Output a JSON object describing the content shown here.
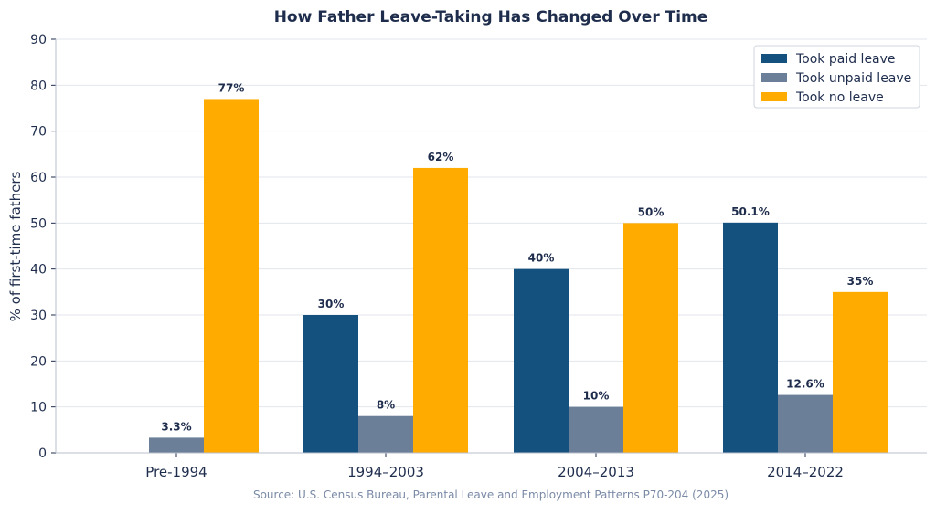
{
  "chart_data": {
    "type": "bar",
    "title": "How Father Leave-Taking Has Changed Over Time",
    "ylabel": "% of first-time fathers",
    "xlabel": "",
    "categories": [
      "Pre-1994",
      "1994–2003",
      "2004–2013",
      "2014–2022"
    ],
    "series": [
      {
        "name": "Took paid leave",
        "color": "#14517e",
        "values": [
          null,
          30,
          40,
          50.1
        ],
        "labels": [
          "",
          "30%",
          "40%",
          "50.1%"
        ]
      },
      {
        "name": "Took unpaid leave",
        "color": "#6b7f99",
        "values": [
          3.3,
          8,
          10,
          12.6
        ],
        "labels": [
          "3.3%",
          "8%",
          "10%",
          "12.6%"
        ]
      },
      {
        "name": "Took no leave",
        "color": "#ffab00",
        "values": [
          77,
          62,
          50,
          35
        ],
        "labels": [
          "77%",
          "62%",
          "50%",
          "35%"
        ]
      }
    ],
    "ylim": [
      0,
      90
    ],
    "yticks": [
      0,
      10,
      20,
      30,
      40,
      50,
      60,
      70,
      80,
      90
    ],
    "grid": "horizontal",
    "legend_position": "top-right",
    "source": "Source: U.S. Census Bureau, Parental Leave and Employment Patterns P70-204 (2025)"
  }
}
